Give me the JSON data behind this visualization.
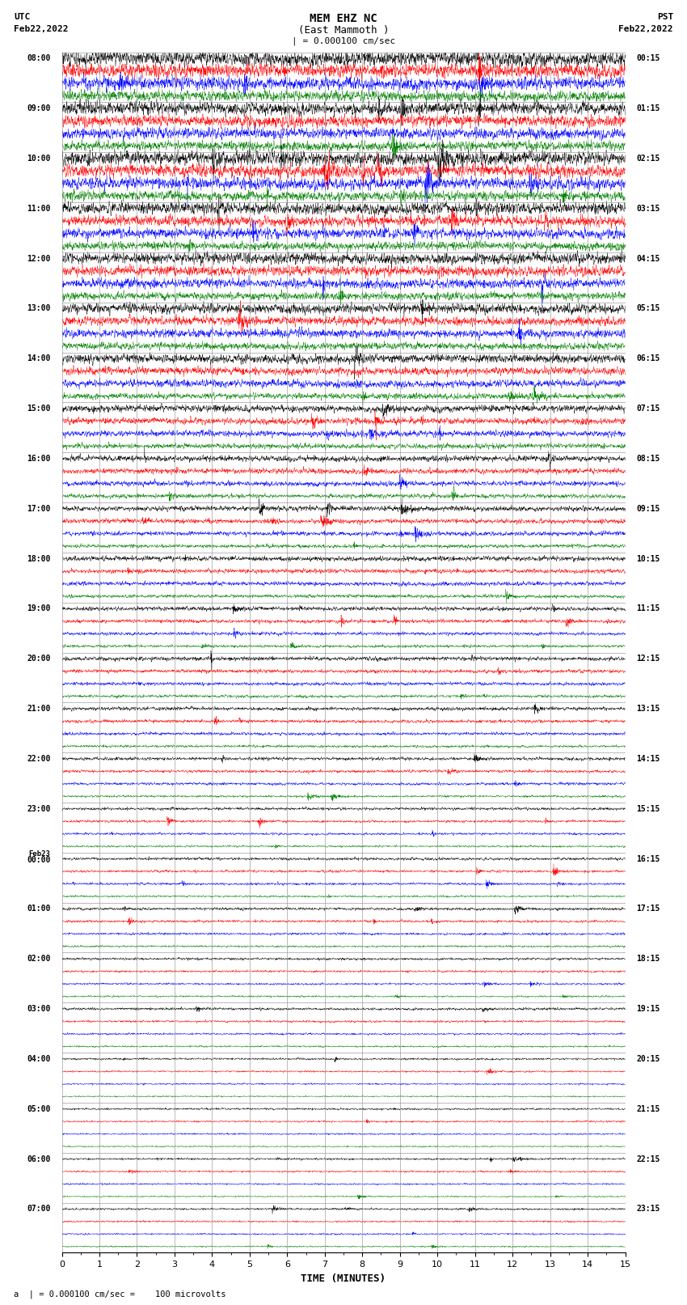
{
  "title_line1": "MEM EHZ NC",
  "title_line2": "(East Mammoth )",
  "scale_label": "| = 0.000100 cm/sec",
  "bottom_label": "a  | = 0.000100 cm/sec =    100 microvolts",
  "xlabel": "TIME (MINUTES)",
  "left_header_line1": "UTC",
  "left_header_line2": "Feb22,2022",
  "right_header_line1": "PST",
  "right_header_line2": "Feb22,2022",
  "colors": [
    "black",
    "red",
    "blue",
    "green"
  ],
  "fig_width": 8.5,
  "fig_height": 16.13,
  "dpi": 100,
  "xlim": [
    0,
    15
  ],
  "x_ticks": [
    0,
    1,
    2,
    3,
    4,
    5,
    6,
    7,
    8,
    9,
    10,
    11,
    12,
    13,
    14,
    15
  ],
  "background_color": "white",
  "left_labels_utc": [
    "08:00",
    "09:00",
    "10:00",
    "11:00",
    "12:00",
    "13:00",
    "14:00",
    "15:00",
    "16:00",
    "17:00",
    "18:00",
    "19:00",
    "20:00",
    "21:00",
    "22:00",
    "23:00",
    "Feb23\n00:00",
    "01:00",
    "02:00",
    "03:00",
    "04:00",
    "05:00",
    "06:00",
    "07:00"
  ],
  "right_labels_pst": [
    "00:15",
    "01:15",
    "02:15",
    "03:15",
    "04:15",
    "05:15",
    "06:15",
    "07:15",
    "08:15",
    "09:15",
    "10:15",
    "11:15",
    "12:15",
    "13:15",
    "14:15",
    "15:15",
    "16:15",
    "17:15",
    "18:15",
    "19:15",
    "20:15",
    "21:15",
    "22:15",
    "23:15"
  ],
  "amp_by_row": [
    0.38,
    0.32,
    0.35,
    0.3,
    0.28,
    0.25,
    0.22,
    0.18,
    0.15,
    0.13,
    0.12,
    0.1,
    0.1,
    0.09,
    0.08,
    0.07,
    0.07,
    0.07,
    0.06,
    0.06,
    0.05,
    0.05,
    0.05,
    0.05
  ],
  "color_amp_scale": [
    1.0,
    0.9,
    0.85,
    0.7
  ]
}
